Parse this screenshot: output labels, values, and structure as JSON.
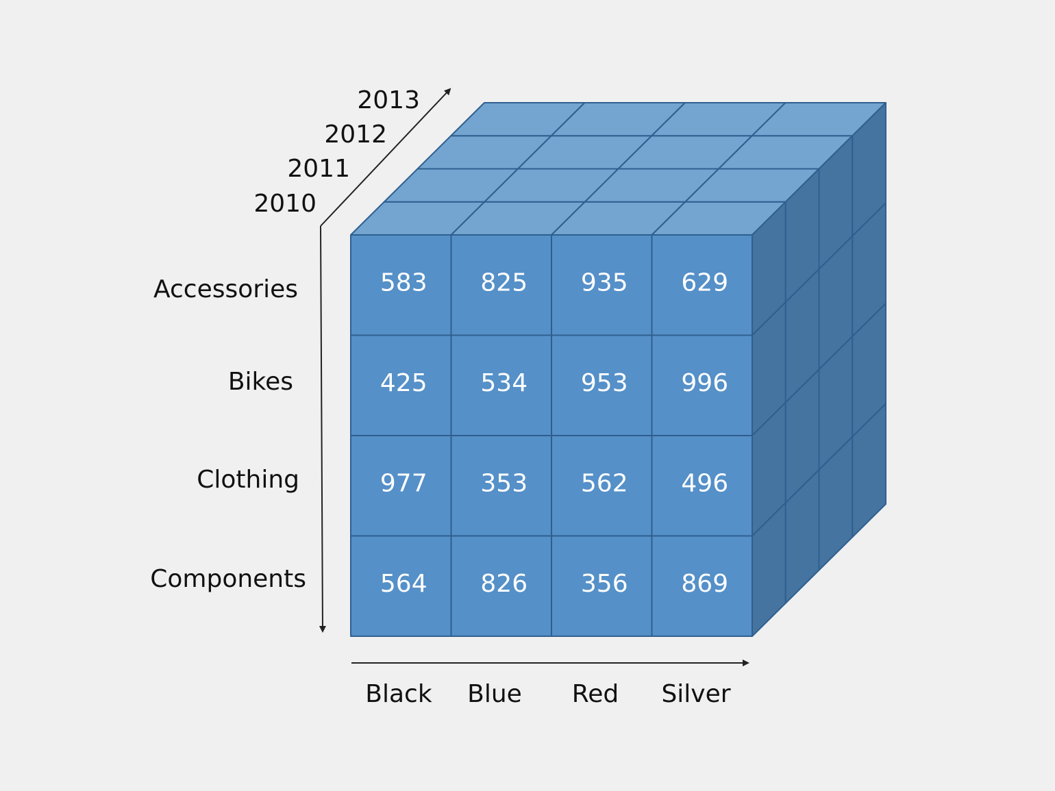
{
  "cube": {
    "rows": [
      "Accessories",
      "Bikes",
      "Clothing",
      "Components"
    ],
    "columns": [
      "Black",
      "Blue",
      "Red",
      "Silver"
    ],
    "depth": [
      "2010",
      "2011",
      "2012",
      "2013"
    ],
    "values": [
      [
        "583",
        "825",
        "935",
        "629"
      ],
      [
        "425",
        "534",
        "953",
        "996"
      ],
      [
        "977",
        "353",
        "562",
        "496"
      ],
      [
        "564",
        "826",
        "356",
        "869"
      ]
    ]
  },
  "colors": {
    "background": "#f0f0f0",
    "front": "#5590c8",
    "top": "#74a5d0",
    "side": "#44749f",
    "grid": "#2f5f8f",
    "text_light": "#ffffff",
    "text_dark": "#111111",
    "axis": "#222222"
  }
}
